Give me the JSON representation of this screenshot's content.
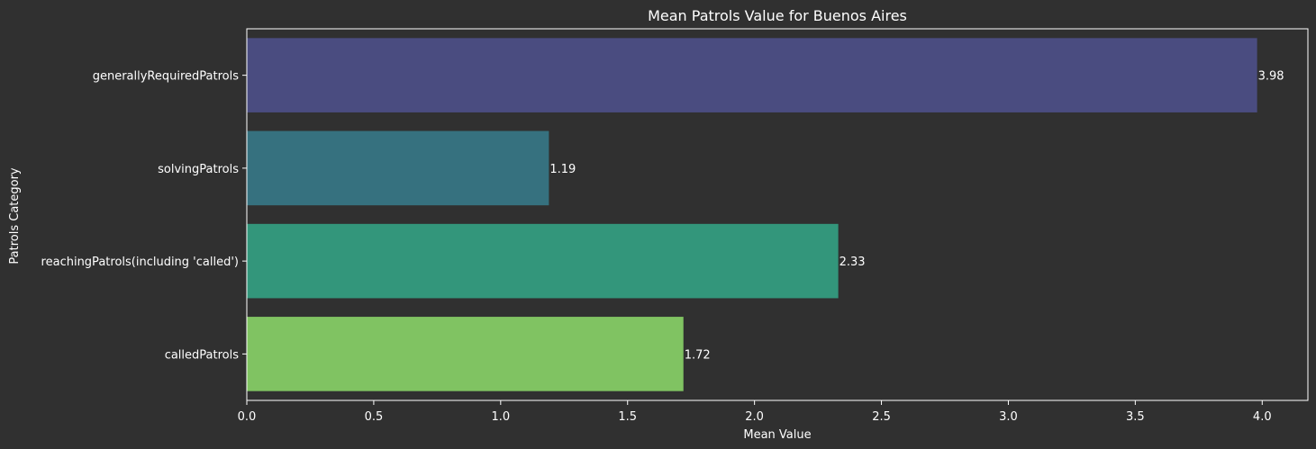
{
  "chart_data": {
    "type": "bar",
    "orientation": "horizontal",
    "title": "Mean Patrols Value for Buenos Aires",
    "xlabel": "Mean Value",
    "ylabel": "Patrols Category",
    "categories": [
      "generallyRequiredPatrols",
      "solvingPatrols",
      "reachingPatrols(including 'called')",
      "calledPatrols"
    ],
    "values": [
      3.98,
      1.19,
      2.33,
      1.72
    ],
    "value_labels": [
      "3.98",
      "1.19",
      "2.33",
      "1.72"
    ],
    "colors": [
      "#4a4c80",
      "#36717f",
      "#33967b",
      "#80c362"
    ],
    "xlim": [
      0,
      4.18
    ],
    "xticks": [
      0.0,
      0.5,
      1.0,
      1.5,
      2.0,
      2.5,
      3.0,
      3.5,
      4.0
    ],
    "xtick_labels": [
      "0.0",
      "0.5",
      "1.0",
      "1.5",
      "2.0",
      "2.5",
      "3.0",
      "3.5",
      "4.0"
    ],
    "grid": false,
    "legend": "none",
    "background": "#303030",
    "axis_color": "#ffffff",
    "text_color": "#ffffff"
  }
}
